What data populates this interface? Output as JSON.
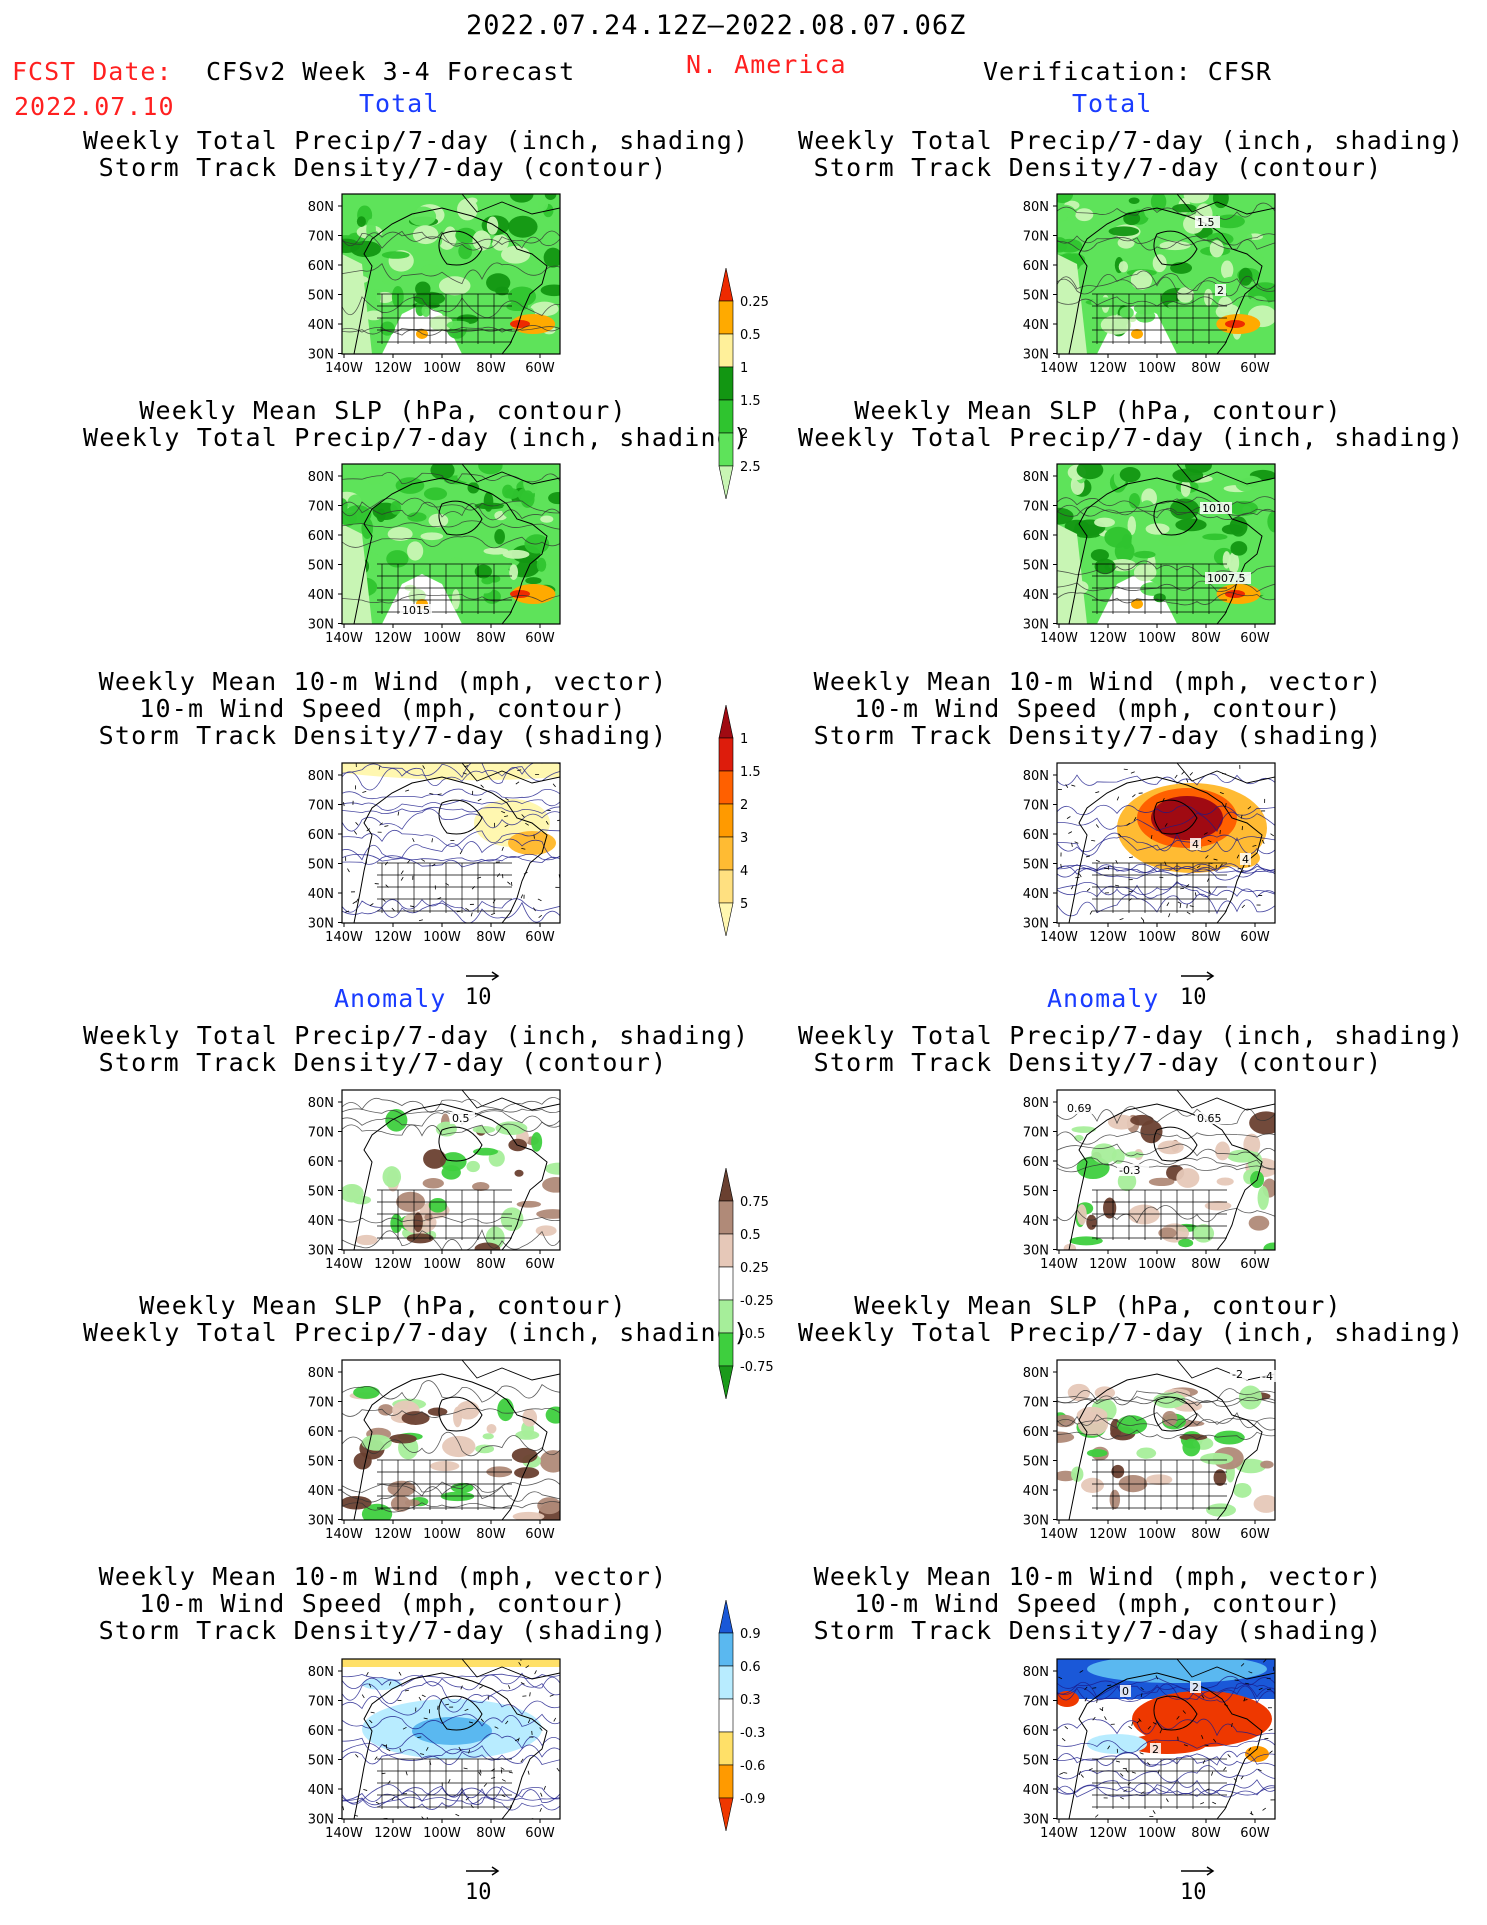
{
  "header": {
    "date_range": "2022.07.24.12Z–2022.08.07.06Z",
    "fcst_label": "FCST Date:",
    "fcst_date": "2022.07.10",
    "forecast_title": "CFSv2 Week 3-4 Forecast",
    "region": "N. America",
    "verification": "Verification: CFSR"
  },
  "sections": {
    "total": "Total",
    "anomaly": "Anomaly"
  },
  "titles": {
    "precip_track": [
      "Weekly Total Precip/7-day (inch, shading)",
      "Storm Track Density/7-day (contour)"
    ],
    "slp_precip": [
      "Weekly Mean SLP (hPa, contour)",
      "Weekly Total Precip/7-day (inch, shading)"
    ],
    "wind_track": [
      "Weekly Mean 10-m Wind (mph, vector)",
      "10-m Wind Speed (mph, contour)",
      "Storm Track Density/7-day (shading)"
    ]
  },
  "axes": {
    "lat_labels": [
      "80N",
      "70N",
      "60N",
      "50N",
      "40N",
      "30N"
    ],
    "lon_labels": [
      "140W",
      "120W",
      "100W",
      "80W",
      "60W"
    ]
  },
  "vector_scale": "10",
  "colorbars": {
    "precip_total": {
      "labels": [
        "0.25",
        "0.5",
        "1",
        "1.5",
        "2",
        "2.5"
      ],
      "colors": [
        "#c8f5b4",
        "#5ee35a",
        "#2fc42f",
        "#129612",
        "#fff09a",
        "#ffaa00",
        "#ee2a00"
      ]
    },
    "track_total": {
      "labels": [
        "1",
        "1.5",
        "2",
        "3",
        "4",
        "5"
      ],
      "colors": [
        "#fff7b0",
        "#ffe080",
        "#ffbb33",
        "#ff9a00",
        "#ff6000",
        "#dd1c0c",
        "#a00a12"
      ]
    },
    "precip_anom": {
      "labels": [
        "0.75",
        "0.5",
        "0.25",
        "-0.25",
        "-0.5",
        "-0.75"
      ],
      "colors": [
        "#1a9a1a",
        "#3ecf3e",
        "#a6ee9a",
        "#ffffff",
        "#e6c8b8",
        "#b08a78",
        "#6a4030"
      ]
    },
    "track_anom": {
      "labels": [
        "0.9",
        "0.6",
        "0.3",
        "-0.3",
        "-0.6",
        "-0.9"
      ],
      "colors": [
        "#ee3800",
        "#ff9a00",
        "#ffe068",
        "#ffffff",
        "#b8ecff",
        "#5ab8f0",
        "#1a58d8"
      ]
    }
  },
  "contour_labels": {
    "r1": [
      "1.5",
      "2"
    ],
    "l2": [
      "1015"
    ],
    "r2": [
      "1010",
      "1007.5"
    ],
    "r3": [
      "4",
      "4"
    ],
    "l4": [
      "0.5"
    ],
    "r4": [
      "0.69",
      "0.65",
      "-0.3"
    ],
    "r5": [
      "-2",
      "-4"
    ],
    "r6": [
      "0",
      "2",
      "2"
    ]
  }
}
